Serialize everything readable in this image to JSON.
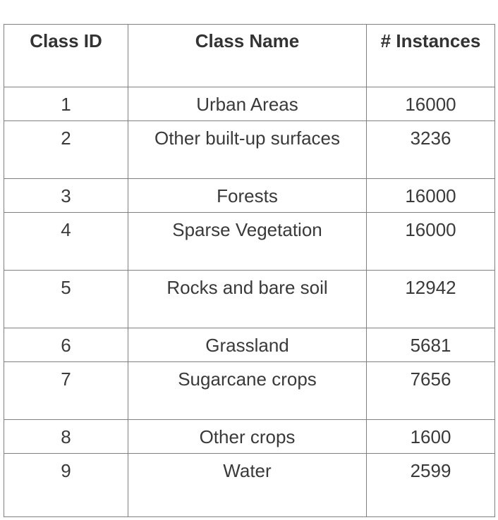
{
  "table": {
    "headers": [
      "Class ID",
      "Class Name",
      "# Instances"
    ],
    "rows": [
      {
        "id": "1",
        "name": "Urban Areas",
        "instances": "16000"
      },
      {
        "id": "2",
        "name": "Other built-up surfaces",
        "instances": "3236"
      },
      {
        "id": "3",
        "name": "Forests",
        "instances": "16000"
      },
      {
        "id": "4",
        "name": "Sparse Vegetation",
        "instances": "16000"
      },
      {
        "id": "5",
        "name": "Rocks and bare soil",
        "instances": "12942"
      },
      {
        "id": "6",
        "name": "Grassland",
        "instances": "5681"
      },
      {
        "id": "7",
        "name": "Sugarcane crops",
        "instances": "7656"
      },
      {
        "id": "8",
        "name": "Other crops",
        "instances": "1600"
      },
      {
        "id": "9",
        "name": "Water",
        "instances": "2599"
      }
    ]
  }
}
